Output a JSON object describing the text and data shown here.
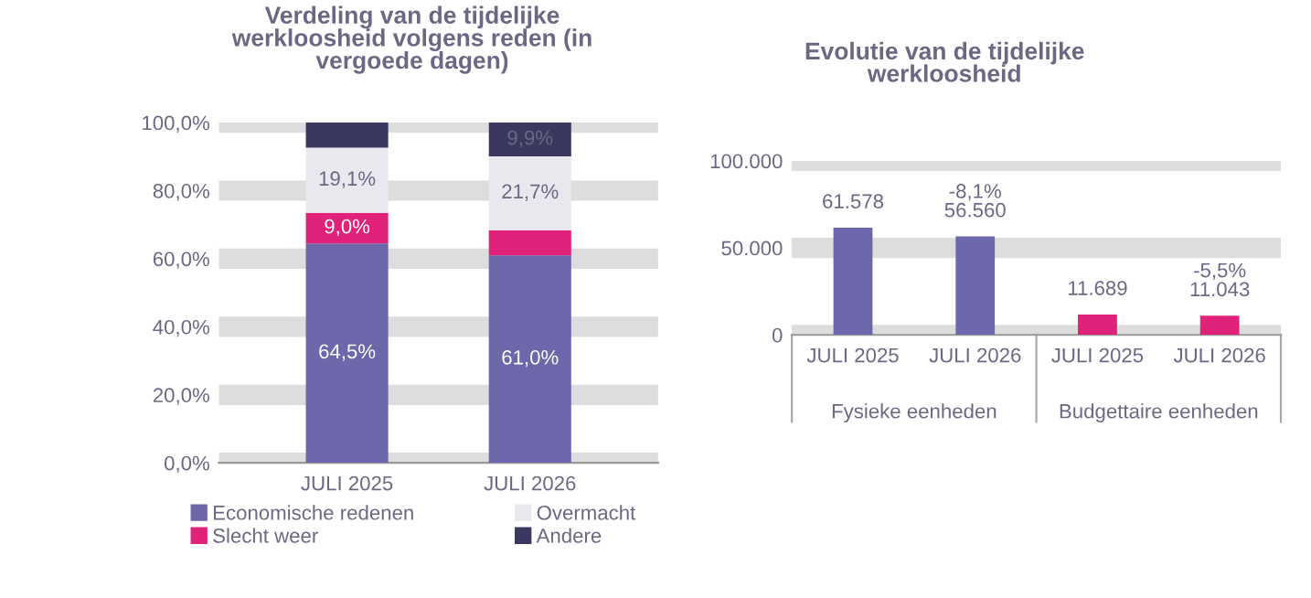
{
  "chart_data": [
    {
      "type": "bar",
      "title": "Verdeling van de tijdelijke\nwerkloosheid volgens reden (in\nvergoede dagen)",
      "categories": [
        "JULI 2025",
        "JULI 2026"
      ],
      "stacked": true,
      "ylim": [
        0,
        100
      ],
      "yticks": [
        {
          "value": 0,
          "label": "0,0%"
        },
        {
          "value": 20,
          "label": "20,0%"
        },
        {
          "value": 40,
          "label": "40,0%"
        },
        {
          "value": 60,
          "label": "60,0%"
        },
        {
          "value": 80,
          "label": "80,0%"
        },
        {
          "value": 100,
          "label": "100,0%"
        }
      ],
      "grid": "y",
      "legend": "bottom",
      "series": [
        {
          "name": "Economische redenen",
          "color": "#6d67ab",
          "values": [
            64.5,
            61.0
          ],
          "value_labels": [
            "64,5%",
            "61,0%"
          ]
        },
        {
          "name": "Slecht weer",
          "color": "#e0227a",
          "values": [
            9.0,
            7.4
          ],
          "value_labels": [
            "9,0%",
            null
          ]
        },
        {
          "name": "Overmacht",
          "color": "#e9e8ef",
          "values": [
            19.1,
            21.7
          ],
          "value_labels": [
            "19,1%",
            "21,7%"
          ]
        },
        {
          "name": "Andere",
          "color": "#3b3860",
          "values": [
            7.4,
            9.9
          ],
          "value_labels": [
            null,
            "9,9%"
          ]
        }
      ]
    },
    {
      "type": "bar",
      "title": "Evolutie van de tijdelijke\nwerkloosheid",
      "categories": [
        "JULI 2025",
        "JULI 2026",
        "JULI 2025",
        "JULI 2026"
      ],
      "ylim": [
        0,
        100000
      ],
      "yticks": [
        {
          "value": 0,
          "label": "0"
        },
        {
          "value": 50000,
          "label": "50.000"
        },
        {
          "value": 100000,
          "label": "100.000"
        }
      ],
      "grid": "y",
      "series": [
        {
          "colors": [
            "#6d67ab",
            "#6d67ab",
            "#e0227a",
            "#e0227a"
          ],
          "values": [
            61578,
            56560,
            11689,
            11043
          ],
          "value_labels": [
            "61.578",
            "-8,1%\n56.560",
            "11.689",
            "-5,5%\n11.043"
          ]
        }
      ],
      "annotations": [
        "Fysieke eenheden",
        "Budgettaire eenheden"
      ]
    }
  ]
}
